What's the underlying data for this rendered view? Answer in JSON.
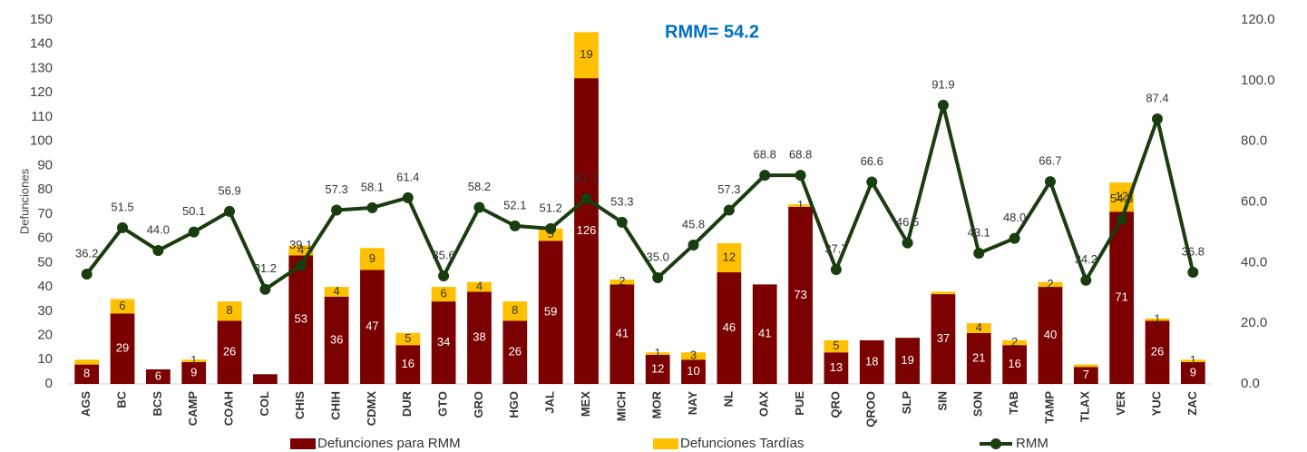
{
  "chart_data": {
    "type": "bar",
    "annotation": "RMM= 54.2",
    "y_label": "Defunciones",
    "categories": [
      "AGS",
      "BC",
      "BCS",
      "CAMP",
      "COAH",
      "COL",
      "CHIS",
      "CHIH",
      "CDMX",
      "DUR",
      "GTO",
      "GRO",
      "HGO",
      "JAL",
      "MEX",
      "MICH",
      "MOR",
      "NAY",
      "NL",
      "OAX",
      "PUE",
      "QRO",
      "QROO",
      "SLP",
      "SIN",
      "SON",
      "TAB",
      "TAMP",
      "TLAX",
      "VER",
      "YUC",
      "ZAC"
    ],
    "series": [
      {
        "name": "Defunciones para RMM",
        "color": "#7b0000",
        "values": [
          8,
          29,
          6,
          9,
          26,
          4,
          53,
          36,
          47,
          16,
          34,
          38,
          26,
          59,
          126,
          41,
          12,
          10,
          46,
          41,
          73,
          13,
          18,
          19,
          37,
          21,
          16,
          40,
          7,
          71,
          26,
          9
        ],
        "value_labels": [
          "8",
          "29",
          "6",
          "9",
          "26",
          null,
          "53",
          "36",
          "47",
          "16",
          "34",
          "38",
          "26",
          "59",
          "126",
          "41",
          "12",
          "10",
          "46",
          "41",
          "73",
          "13",
          "18",
          "19",
          "37",
          "21",
          "16",
          "40",
          "7",
          "71",
          "26",
          "9"
        ]
      },
      {
        "name": "Defunciones Tardías",
        "color": "#ffc000",
        "values": [
          2,
          6,
          0,
          1,
          8,
          0,
          4,
          4,
          9,
          5,
          6,
          4,
          8,
          5,
          19,
          2,
          1,
          3,
          12,
          0,
          1,
          5,
          0,
          0,
          1,
          4,
          2,
          2,
          1,
          12,
          1,
          1
        ],
        "value_labels": [
          null,
          "6",
          null,
          "1",
          "8",
          null,
          "4",
          "4",
          "9",
          "5",
          "6",
          "4",
          "8",
          "5",
          "19",
          "2",
          "1",
          "3",
          "12",
          null,
          "1",
          "5",
          null,
          null,
          null,
          "4",
          "2",
          "2",
          null,
          "12",
          "1",
          "1"
        ]
      },
      {
        "name": "RMM",
        "type": "line",
        "axis": "y2",
        "color": "#1a3d0f",
        "values": [
          36.2,
          51.5,
          44.0,
          50.1,
          56.9,
          31.2,
          39.1,
          57.3,
          58.1,
          61.4,
          35.6,
          58.2,
          52.1,
          51.2,
          61.1,
          53.3,
          35.0,
          45.8,
          57.3,
          68.8,
          68.8,
          37.7,
          66.6,
          46.5,
          91.9,
          43.1,
          48.0,
          66.7,
          34.2,
          54.3,
          87.4,
          36.8
        ],
        "value_labels": [
          "36.2",
          "51.5",
          "44.0",
          "50.1",
          "56.9",
          "31.2",
          "39.1",
          "57.3",
          "58.1",
          "61.4",
          "35.6",
          "58.2",
          "52.1",
          "51.2",
          "61.1",
          "53.3",
          "35.0",
          "45.8",
          "57.3",
          "68.8",
          "68.8",
          "37.7",
          "66.6",
          "46.5",
          "91.9",
          "43.1",
          "48.0",
          "66.7",
          "34.2",
          "54.3",
          "87.4",
          "36.8"
        ]
      }
    ],
    "ylim": [
      0,
      150
    ],
    "yticks": [
      0,
      10,
      20,
      30,
      40,
      50,
      60,
      70,
      80,
      90,
      100,
      110,
      120,
      130,
      140,
      150
    ],
    "y2lim": [
      0,
      120
    ],
    "y2ticks": [
      {
        "value": 0,
        "label": "0.0"
      },
      {
        "value": 20,
        "label": "20.0"
      },
      {
        "value": 40,
        "label": "40.0"
      },
      {
        "value": 60,
        "label": "60.0"
      },
      {
        "value": 80,
        "label": "80.0"
      },
      {
        "value": 100,
        "label": "100.0"
      },
      {
        "value": 120,
        "label": "120.0"
      }
    ],
    "grid": false
  }
}
